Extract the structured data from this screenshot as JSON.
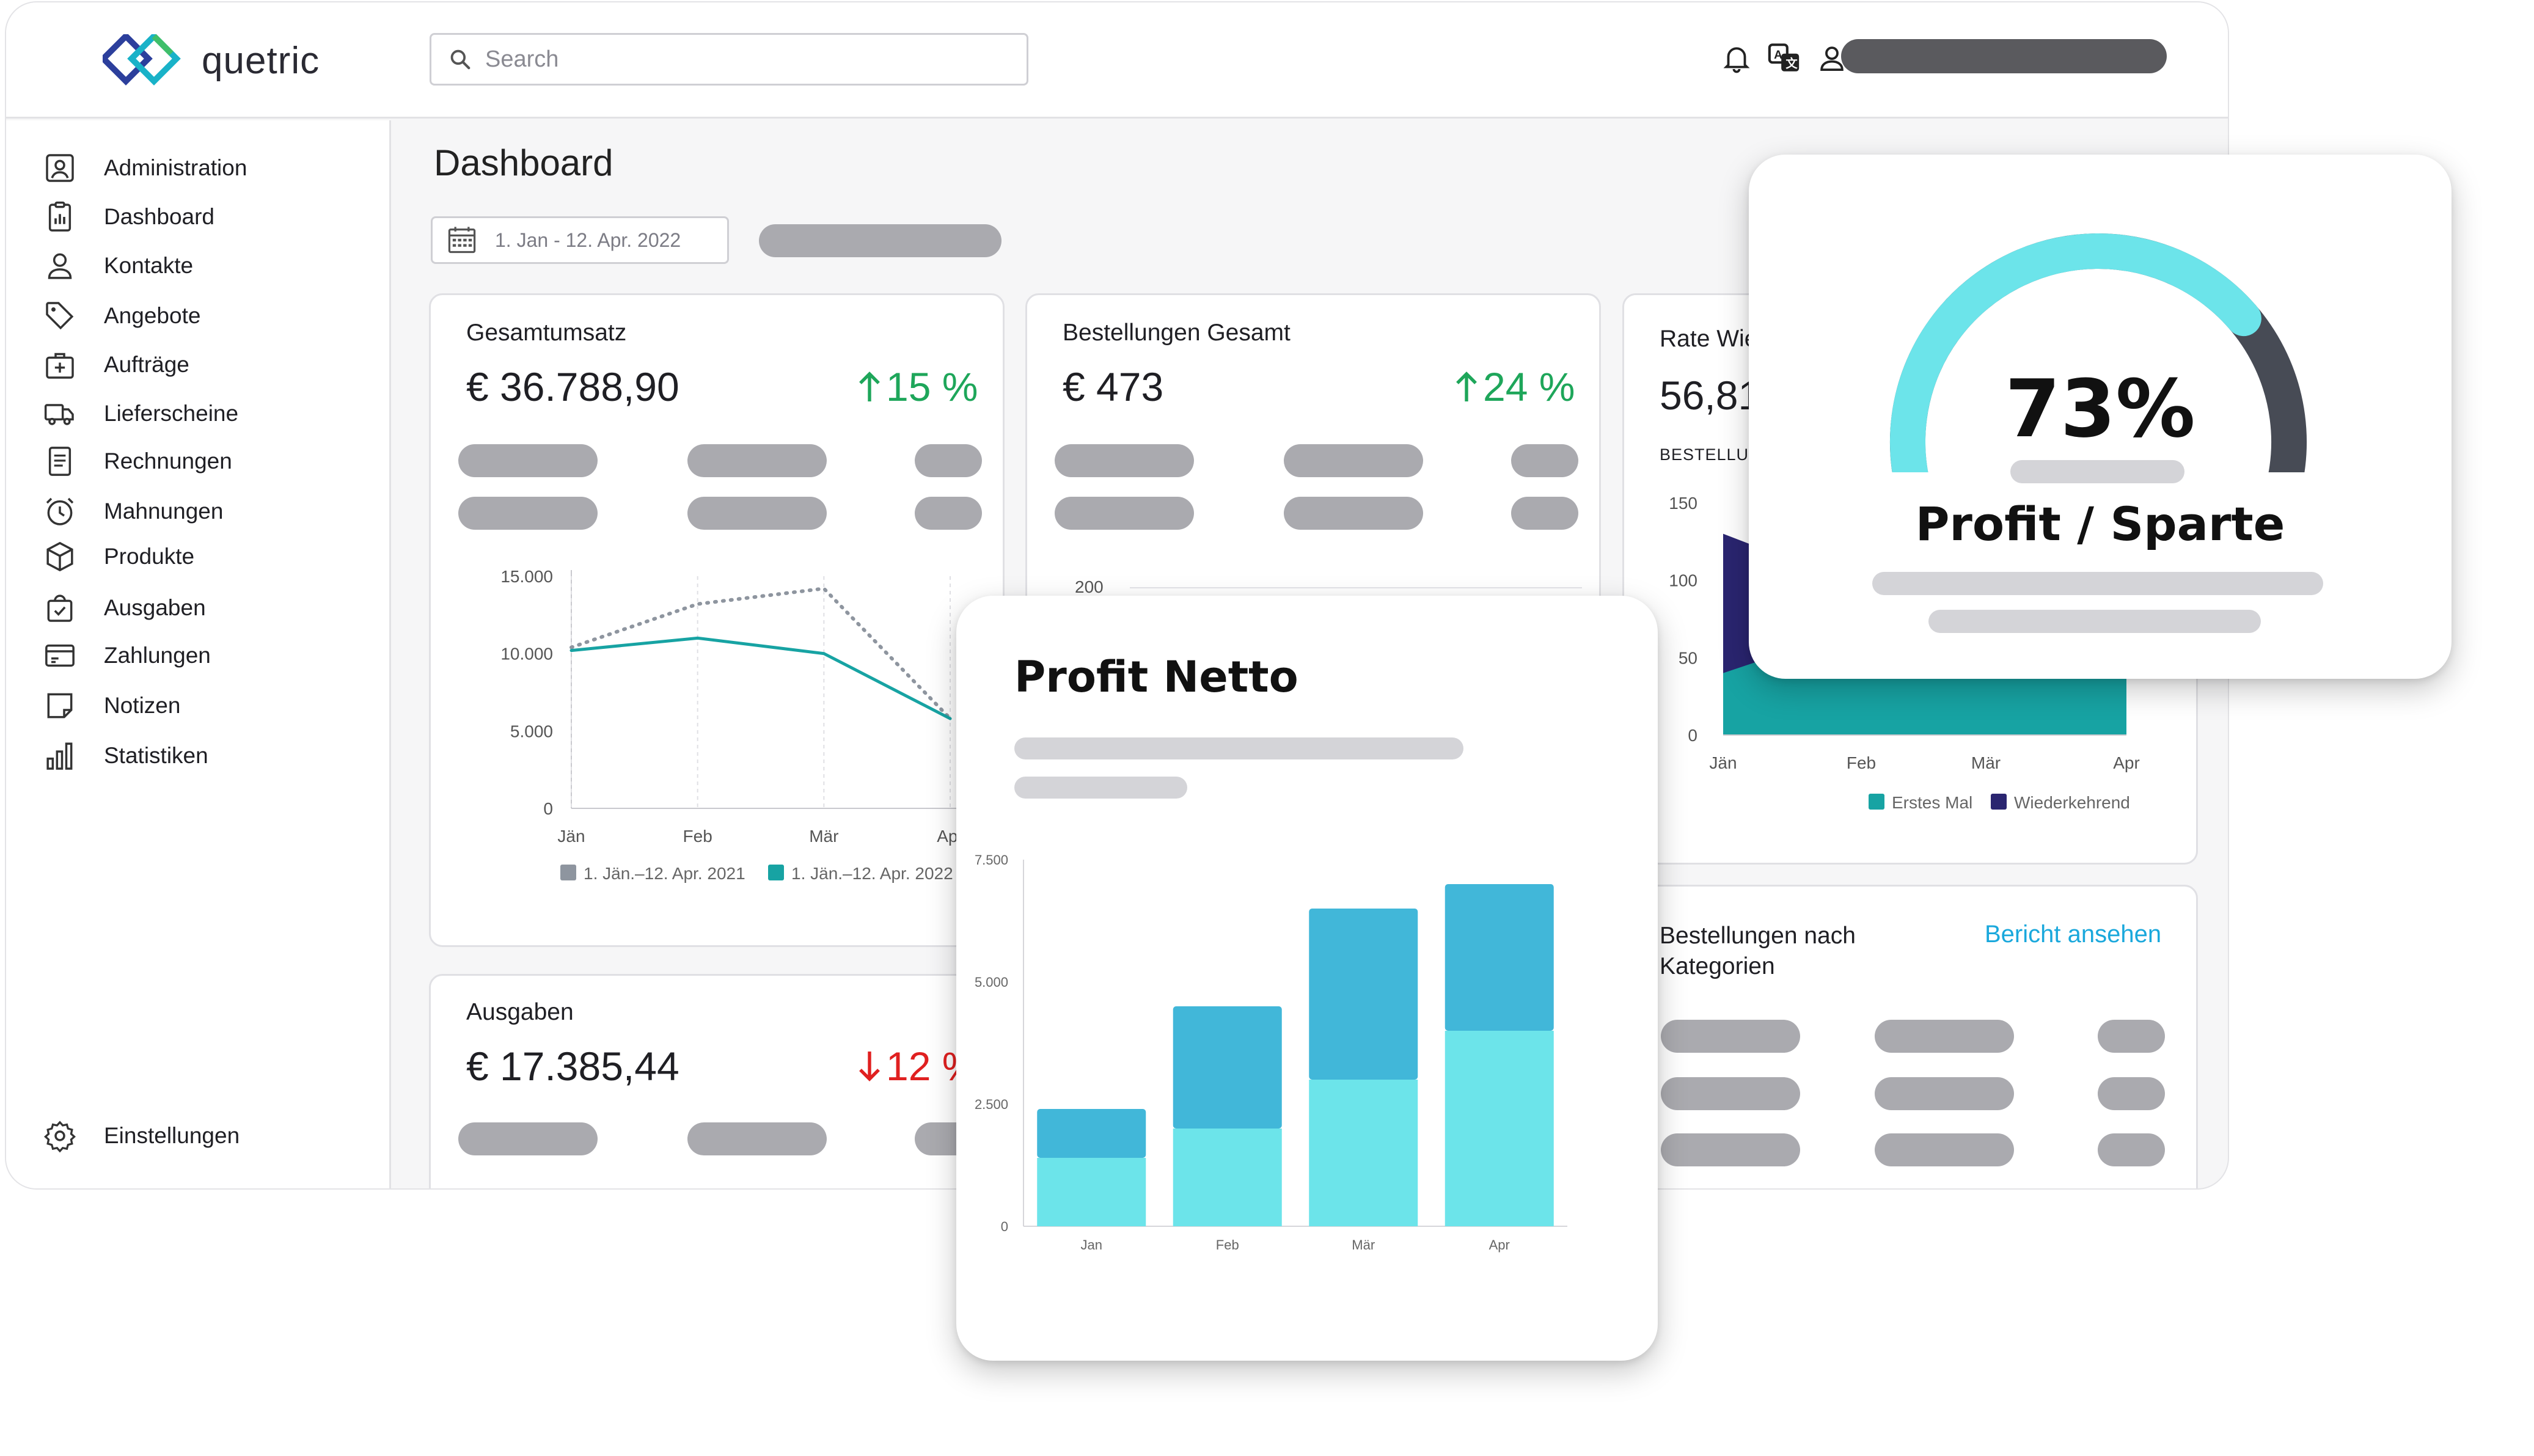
{
  "app": {
    "brand": "quetric",
    "search_placeholder": "Search",
    "page_title": "Dashboard",
    "date_range": "1. Jan - 12. Apr. 2022"
  },
  "sidebar": {
    "items": [
      {
        "label": "Administration",
        "icon": "user-square-icon"
      },
      {
        "label": "Dashboard",
        "icon": "clipboard-chart-icon"
      },
      {
        "label": "Kontakte",
        "icon": "person-icon"
      },
      {
        "label": "Angebote",
        "icon": "tag-icon"
      },
      {
        "label": "Aufträge",
        "icon": "briefcase-plus-icon"
      },
      {
        "label": "Lieferscheine",
        "icon": "truck-icon"
      },
      {
        "label": "Rechnungen",
        "icon": "document-icon"
      },
      {
        "label": "Mahnungen",
        "icon": "alarm-clock-icon"
      },
      {
        "label": "Produkte",
        "icon": "box-icon"
      },
      {
        "label": "Ausgaben",
        "icon": "bag-check-icon"
      },
      {
        "label": "Zahlungen",
        "icon": "card-icon"
      },
      {
        "label": "Notizen",
        "icon": "note-icon"
      },
      {
        "label": "Statistiken",
        "icon": "bar-chart-icon"
      }
    ],
    "settings_label": "Einstellungen"
  },
  "cards": {
    "gesamtumsatz": {
      "title": "Gesamtumsatz",
      "value": "€ 36.788,90",
      "delta": "15 %"
    },
    "bestellungen": {
      "title": "Bestellungen Gesamt",
      "value": "€ 473",
      "delta": "24 %"
    },
    "rate": {
      "title": "Rate Wie",
      "value": "56,81",
      "sub": "BESTELLUN"
    },
    "ausgaben": {
      "title": "Ausgaben",
      "value": "€ 17.385,44",
      "delta": "12 %"
    },
    "kategorien": {
      "title_line1": "Bestellungen nach",
      "title_line2": "Kategorien",
      "link": "Bericht ansehen"
    }
  },
  "colors": {
    "accent_teal": "#17a3a3",
    "accent_cyan": "#6ce4ea",
    "accent_blue": "#41b7d9",
    "navy": "#2a2570",
    "gauge_dark": "#474b55",
    "up_green": "#1ea65a",
    "down_red": "#e02020",
    "link_blue": "#1aa8dc"
  },
  "chart_data": [
    {
      "id": "umsatz-line",
      "type": "line",
      "categories": [
        "Jän",
        "Feb",
        "Mär",
        "Apr"
      ],
      "ylim": [
        0,
        15000
      ],
      "y_ticks": [
        "0",
        "5.000",
        "10.000",
        "15.000"
      ],
      "series": [
        {
          "name": "1. Jän.–12. Apr. 2021",
          "style": "dotted",
          "color": "#8e959f",
          "values": [
            10400,
            13200,
            14200,
            5800
          ]
        },
        {
          "name": "1. Jän.–12. Apr. 2022",
          "style": "solid",
          "color": "#17a3a3",
          "values": [
            10200,
            11000,
            10000,
            5800
          ]
        }
      ]
    },
    {
      "id": "rate-area",
      "type": "area",
      "categories": [
        "Jän",
        "Feb",
        "Mär",
        "Apr"
      ],
      "ylim": [
        0,
        150
      ],
      "y_ticks": [
        "0",
        "50",
        "100",
        "150"
      ],
      "series": [
        {
          "name": "Erstes Mal",
          "color": "#17a3a3"
        },
        {
          "name": "Wiederkehrend",
          "color": "#2a2570"
        }
      ]
    },
    {
      "id": "profit-netto",
      "type": "bar",
      "title": "Profit Netto",
      "categories": [
        "Jan",
        "Feb",
        "Mär",
        "Apr"
      ],
      "ylim": [
        0,
        7500
      ],
      "y_ticks": [
        "0",
        "2.500",
        "5.000",
        "7.500"
      ],
      "series": [
        {
          "color": "#6ce4ea",
          "values": [
            1400,
            2000,
            3000,
            4000
          ]
        },
        {
          "color": "#41b7d9",
          "values": [
            1000,
            2500,
            3500,
            3000
          ]
        }
      ]
    },
    {
      "id": "profit-sparte",
      "type": "gauge",
      "title": "Profit / Sparte",
      "value": 73,
      "label": "73%"
    }
  ],
  "bestellungen_y_tick": "200"
}
